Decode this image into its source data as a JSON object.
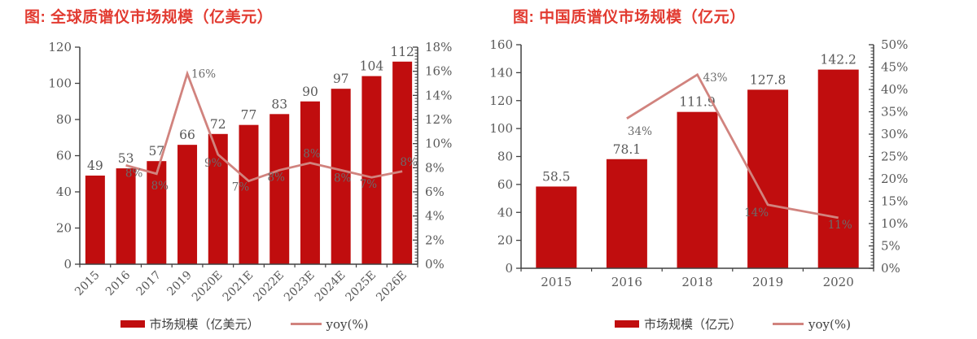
{
  "colors": {
    "bar": "#c00d0e",
    "line": "#d1837e",
    "title": "#e23b31",
    "tick_text": "#595959",
    "bar_label": "#595959",
    "line_label": "#6b6b6b",
    "axis_line": "#404040"
  },
  "charts": [
    {
      "title": "图: 全球质谱仪市场规模（亿美元）",
      "legend": {
        "bar_label": "市场规模（亿美元）",
        "line_label": "yoy(%)"
      },
      "chart_data": {
        "type": "bar",
        "title": "图: 全球质谱仪市场规模（亿美元）",
        "categories": [
          "2015",
          "2016",
          "2017",
          "2019",
          "2020E",
          "2021E",
          "2022E",
          "2023E",
          "2024E",
          "2025E",
          "2026E"
        ],
        "series": [
          {
            "name": "市场规模（亿美元）",
            "type": "bar",
            "axis": "left",
            "values": [
              49,
              53,
              57,
              66,
              72,
              77,
              83,
              90,
              97,
              104,
              112
            ],
            "labels": [
              "49",
              "53",
              "57",
              "66",
              "72",
              "77",
              "83",
              "90",
              "97",
              "104",
              "112"
            ]
          },
          {
            "name": "yoy(%)",
            "type": "line",
            "axis": "right",
            "values": [
              null,
              8.2,
              7.5,
              15.8,
              9.1,
              6.9,
              7.8,
              8.4,
              7.8,
              7.2,
              7.7
            ],
            "labels": [
              null,
              "8%",
              "8%",
              "16%",
              "9%",
              "7%",
              "8%",
              "8%",
              "8%",
              "7%",
              "8%"
            ],
            "label_offsets": [
              null,
              [
                10,
                14
              ],
              [
                4,
                19
              ],
              [
                20,
                5
              ],
              [
                -6,
                15
              ],
              [
                -10,
                12
              ],
              [
                -4,
                13
              ],
              [
                2,
                -7
              ],
              [
                2,
                14
              ],
              [
                -4,
                13
              ],
              [
                8,
                -7
              ]
            ]
          }
        ],
        "y_left": {
          "min": 0,
          "max": 120,
          "step": 20
        },
        "y_right": {
          "min": 0,
          "max": 18,
          "step": 2,
          "minor_div": 8,
          "suffix": "%"
        },
        "x_label_rotate": true,
        "grid": false,
        "legend_position": "bottom",
        "xlabel": "",
        "ylabel": ""
      }
    },
    {
      "title": "图: 中国质谱仪市场规模（亿元）",
      "legend": {
        "bar_label": "市场规模（亿元）",
        "line_label": "yoy(%)"
      },
      "chart_data": {
        "type": "bar",
        "title": "图: 中国质谱仪市场规模（亿元）",
        "categories": [
          "2015",
          "2016",
          "2018",
          "2019",
          "2020"
        ],
        "series": [
          {
            "name": "市场规模（亿元）",
            "type": "bar",
            "axis": "left",
            "values": [
              58.5,
              78.1,
              111.9,
              127.8,
              142.2
            ],
            "labels": [
              "58.5",
              "78.1",
              "111.9",
              "127.8",
              "142.2"
            ]
          },
          {
            "name": "yoy(%)",
            "type": "line",
            "axis": "right",
            "values": [
              null,
              33.5,
              43.3,
              14.2,
              11.3
            ],
            "labels": [
              null,
              "34%",
              "43%",
              "14%",
              "11%"
            ],
            "label_offsets": [
              null,
              [
                16,
                20
              ],
              [
                22,
                8
              ],
              [
                -14,
                14
              ],
              [
                2,
                13
              ]
            ]
          }
        ],
        "y_left": {
          "min": 0,
          "max": 160,
          "step": 20
        },
        "y_right": {
          "min": 0,
          "max": 50,
          "step": 5,
          "minor_div": 7,
          "suffix": "%"
        },
        "x_label_rotate": false,
        "grid": false,
        "legend_position": "bottom",
        "xlabel": "",
        "ylabel": ""
      }
    }
  ]
}
